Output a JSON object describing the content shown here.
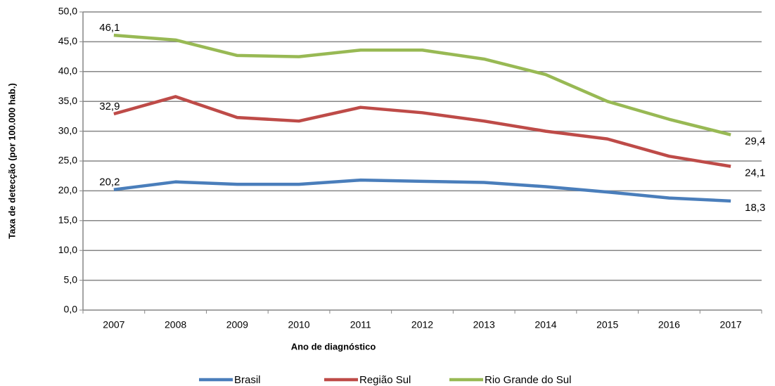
{
  "chart_data": {
    "type": "line",
    "x_label": "Ano de diagnóstico",
    "y_label": "Taxa de detecção (por 100.000 hab.)",
    "categories": [
      "2007",
      "2008",
      "2009",
      "2010",
      "2011",
      "2012",
      "2013",
      "2014",
      "2015",
      "2016",
      "2017"
    ],
    "series": [
      {
        "name": "Brasil",
        "color": "#4a7ebb",
        "values": [
          20.2,
          21.5,
          21.1,
          21.1,
          21.8,
          21.6,
          21.4,
          20.7,
          19.8,
          18.8,
          18.3
        ],
        "value_labels": [
          "20,2",
          null,
          null,
          null,
          null,
          null,
          null,
          null,
          null,
          null,
          "18,3"
        ]
      },
      {
        "name": "Região Sul",
        "color": "#be4b48",
        "values": [
          32.9,
          35.8,
          32.3,
          31.7,
          34.0,
          33.1,
          31.7,
          30.0,
          28.7,
          25.8,
          24.1
        ],
        "value_labels": [
          "32,9",
          null,
          null,
          null,
          null,
          null,
          null,
          null,
          null,
          null,
          "24,1"
        ]
      },
      {
        "name": "Rio Grande do Sul",
        "color": "#98b954",
        "values": [
          46.1,
          45.3,
          42.7,
          42.5,
          43.6,
          43.6,
          42.1,
          39.5,
          35.0,
          32.0,
          29.4
        ],
        "value_labels": [
          "46,1",
          null,
          null,
          null,
          null,
          null,
          null,
          null,
          null,
          null,
          "29,4"
        ]
      }
    ],
    "ylim": [
      0,
      50
    ],
    "yticks": [
      {
        "value": 0,
        "label": "0,0"
      },
      {
        "value": 5,
        "label": "5,0"
      },
      {
        "value": 10,
        "label": "10,0"
      },
      {
        "value": 15,
        "label": "15,0"
      },
      {
        "value": 20,
        "label": "20,0"
      },
      {
        "value": 25,
        "label": "25,0"
      },
      {
        "value": 30,
        "label": "30,0"
      },
      {
        "value": 35,
        "label": "35,0"
      },
      {
        "value": 40,
        "label": "40,0"
      },
      {
        "value": 45,
        "label": "45,0"
      },
      {
        "value": 50,
        "label": "50,0"
      }
    ],
    "grid": true,
    "legend": "bottom"
  }
}
